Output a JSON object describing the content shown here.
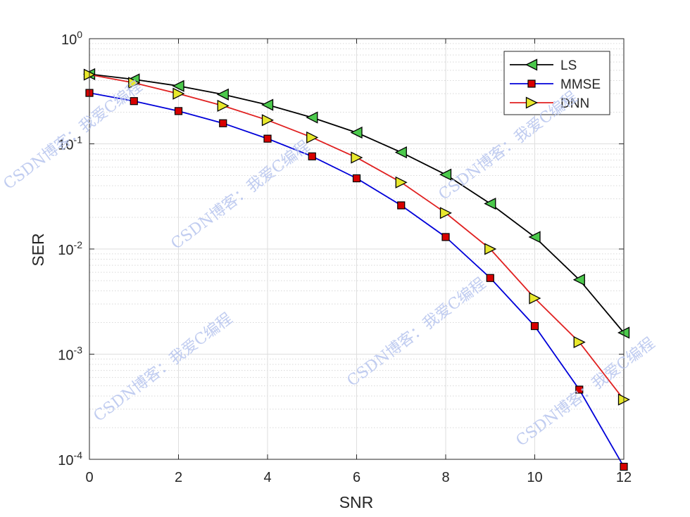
{
  "chart_data": {
    "type": "line",
    "xlabel": "SNR",
    "ylabel": "SER",
    "xlim": [
      0,
      12
    ],
    "ylim": [
      0.0001,
      1
    ],
    "yscale": "log",
    "grid": true,
    "legend_position": "top-right",
    "x_ticks": [
      0,
      2,
      4,
      6,
      8,
      10,
      12
    ],
    "y_ticks": [
      {
        "value": 1,
        "base": "10",
        "exp": "0"
      },
      {
        "value": 0.1,
        "base": "10",
        "exp": "-1"
      },
      {
        "value": 0.01,
        "base": "10",
        "exp": "-2"
      },
      {
        "value": 0.001,
        "base": "10",
        "exp": "-3"
      },
      {
        "value": 0.0001,
        "base": "10",
        "exp": "-4"
      }
    ],
    "x": [
      0,
      1,
      2,
      3,
      4,
      5,
      6,
      7,
      8,
      9,
      10,
      11,
      12
    ],
    "series": [
      {
        "name": "LS",
        "color": "#000000",
        "marker": "triangle-left",
        "marker_color": "#4cc94c",
        "values": [
          0.46,
          0.41,
          0.355,
          0.295,
          0.235,
          0.178,
          0.128,
          0.083,
          0.051,
          0.027,
          0.013,
          0.0051,
          0.0016
        ]
      },
      {
        "name": "MMSE",
        "color": "#0000d9",
        "marker": "square",
        "marker_color": "#d80000",
        "values": [
          0.305,
          0.255,
          0.205,
          0.157,
          0.112,
          0.076,
          0.047,
          0.026,
          0.013,
          0.0053,
          0.00185,
          0.00046,
          8.5e-05
        ]
      },
      {
        "name": "DNN",
        "color": "#e02020",
        "marker": "triangle-right",
        "marker_color": "#e8e82c",
        "values": [
          0.455,
          0.38,
          0.3,
          0.23,
          0.168,
          0.115,
          0.074,
          0.043,
          0.022,
          0.01,
          0.0034,
          0.0013,
          0.00037
        ]
      }
    ]
  },
  "watermarks": [
    "CSDN博客：我爱C编程",
    "CSDN博客：我爱C编程",
    "CSDN博客：我爱C编程",
    "CSDN博客：我爱C编程",
    "CSDN博客：我爱C编程",
    "CSDN博客：我爱C编程"
  ]
}
